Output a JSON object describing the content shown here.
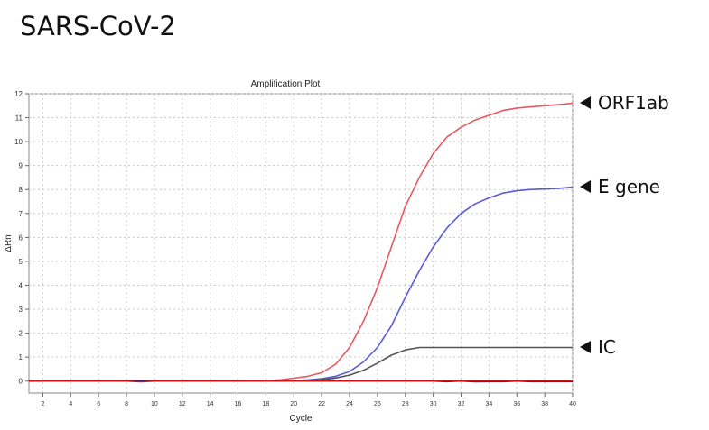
{
  "heading": "SARS-CoV-2",
  "chart_data": {
    "type": "line",
    "title": "Amplification Plot",
    "xlabel": "Cycle",
    "ylabel": "ΔRn",
    "xlim": [
      1,
      40
    ],
    "ylim": [
      -0.5,
      12
    ],
    "x_ticks": [
      2,
      4,
      6,
      8,
      10,
      12,
      14,
      16,
      18,
      20,
      22,
      24,
      26,
      28,
      30,
      32,
      34,
      36,
      38,
      40
    ],
    "y_ticks": [
      0,
      1,
      2,
      3,
      4,
      5,
      6,
      7,
      8,
      9,
      10,
      11,
      12
    ],
    "grid": true,
    "series": [
      {
        "name": "ORF1ab",
        "color": "#e8595f",
        "x": [
          1,
          2,
          4,
          6,
          8,
          10,
          12,
          14,
          16,
          18,
          19,
          20,
          21,
          22,
          23,
          24,
          25,
          26,
          27,
          28,
          29,
          30,
          31,
          32,
          33,
          34,
          35,
          36,
          37,
          38,
          39,
          40
        ],
        "y": [
          0.0,
          0.0,
          0.0,
          0.0,
          0.0,
          0.0,
          0.0,
          0.0,
          0.0,
          0.02,
          0.05,
          0.12,
          0.2,
          0.35,
          0.7,
          1.4,
          2.5,
          3.9,
          5.6,
          7.3,
          8.5,
          9.5,
          10.2,
          10.6,
          10.9,
          11.1,
          11.3,
          11.4,
          11.45,
          11.5,
          11.55,
          11.6
        ]
      },
      {
        "name": "E gene",
        "color": "#5a5ae0",
        "x": [
          1,
          2,
          4,
          6,
          8,
          10,
          12,
          14,
          16,
          18,
          20,
          21,
          22,
          23,
          24,
          25,
          26,
          27,
          28,
          29,
          30,
          31,
          32,
          33,
          34,
          35,
          36,
          37,
          38,
          39,
          40
        ],
        "y": [
          0.0,
          0.0,
          0.0,
          0.0,
          0.0,
          0.0,
          0.0,
          0.0,
          0.0,
          0.0,
          0.02,
          0.05,
          0.1,
          0.2,
          0.4,
          0.8,
          1.4,
          2.3,
          3.5,
          4.6,
          5.6,
          6.4,
          7.0,
          7.4,
          7.65,
          7.85,
          7.95,
          8.0,
          8.02,
          8.05,
          8.1
        ]
      },
      {
        "name": "IC",
        "color": "#555555",
        "x": [
          1,
          2,
          4,
          6,
          8,
          10,
          12,
          14,
          16,
          18,
          20,
          21,
          22,
          23,
          24,
          25,
          26,
          27,
          28,
          29,
          30,
          32,
          34,
          36,
          38,
          40
        ],
        "y": [
          0.0,
          0.0,
          0.0,
          0.0,
          0.0,
          0.0,
          0.0,
          0.0,
          0.0,
          0.0,
          0.0,
          0.03,
          0.06,
          0.13,
          0.25,
          0.45,
          0.75,
          1.08,
          1.3,
          1.4,
          1.4,
          1.4,
          1.4,
          1.4,
          1.4,
          1.4
        ]
      },
      {
        "name": "",
        "color": "#1a1a8c",
        "x": [
          1,
          2,
          4,
          6,
          8,
          10,
          12,
          14,
          16,
          18,
          20,
          22,
          24,
          26,
          28,
          30,
          31,
          32,
          33,
          34,
          35,
          36,
          37,
          38,
          40
        ],
        "y": [
          0.0,
          0.0,
          0.0,
          0.0,
          0.0,
          0.0,
          0.0,
          0.0,
          0.0,
          0.0,
          0.0,
          0.0,
          0.0,
          0.0,
          0.0,
          0.0,
          -0.02,
          0.0,
          -0.03,
          -0.02,
          -0.02,
          0.0,
          -0.02,
          -0.02,
          -0.02
        ]
      },
      {
        "name": "",
        "color": "#cc1111",
        "x": [
          1,
          2,
          4,
          6,
          8,
          9,
          10,
          12,
          14,
          16,
          18,
          20,
          40
        ],
        "y": [
          0.02,
          0.0,
          0.0,
          0.0,
          0.0,
          -0.03,
          0.0,
          0.0,
          0.0,
          0.0,
          0.0,
          0.0,
          0.0
        ]
      }
    ]
  },
  "annotations": [
    {
      "label": "ORF1ab",
      "series": 0
    },
    {
      "label": "E gene",
      "series": 1
    },
    {
      "label": "IC",
      "series": 2
    }
  ]
}
